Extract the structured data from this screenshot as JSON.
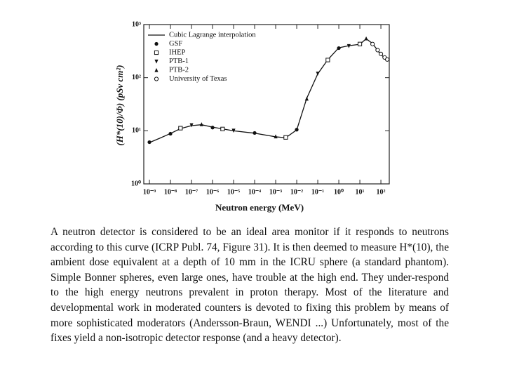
{
  "chart_data": {
    "type": "line",
    "xlabel": "Neutron energy (MeV)",
    "ylabel": "(H*(10)/Φ) (pSv cm²)",
    "xscale": "log",
    "yscale": "log",
    "xlim": [
      5.4e-10,
      250
    ],
    "ylim": [
      1,
      1000
    ],
    "xticks": [
      {
        "value": 1e-09,
        "label": "10⁻⁹"
      },
      {
        "value": 1e-08,
        "label": "10⁻⁸"
      },
      {
        "value": 1e-07,
        "label": "10⁻⁷"
      },
      {
        "value": 1e-06,
        "label": "10⁻⁶"
      },
      {
        "value": 1e-05,
        "label": "10⁻⁵"
      },
      {
        "value": 0.0001,
        "label": "10⁻⁴"
      },
      {
        "value": 0.001,
        "label": "10⁻³"
      },
      {
        "value": 0.01,
        "label": "10⁻²"
      },
      {
        "value": 0.1,
        "label": "10⁻¹"
      },
      {
        "value": 1,
        "label": "10⁰"
      },
      {
        "value": 10,
        "label": "10¹"
      },
      {
        "value": 100,
        "label": "10²"
      }
    ],
    "yticks": [
      {
        "value": 1,
        "label": "10⁰"
      },
      {
        "value": 10,
        "label": "10¹"
      },
      {
        "value": 100,
        "label": "10²"
      },
      {
        "value": 1000,
        "label": "10³"
      }
    ],
    "legend": "upper left",
    "series": [
      {
        "name": "Cubic Lagrange interpolation",
        "color": "#111111",
        "marker": "none",
        "x": [
          1e-09,
          3e-09,
          1e-08,
          3e-08,
          1e-07,
          3e-07,
          1e-06,
          1e-05,
          0.0001,
          0.001,
          0.003,
          0.01,
          0.03,
          0.1,
          0.3,
          1,
          3,
          10,
          20,
          40,
          100,
          200
        ],
        "values": [
          6.0,
          7.2,
          8.9,
          11,
          12.5,
          13,
          11.7,
          10,
          9,
          7.7,
          7.4,
          10.4,
          41,
          118,
          218,
          365,
          400,
          425,
          540,
          440,
          270,
          218
        ]
      },
      {
        "name": "GSF",
        "color": "#111111",
        "marker": "dot",
        "x": [
          1e-09,
          1e-08,
          1e-06,
          0.0001,
          0.01,
          1
        ],
        "values": [
          6.1,
          8.8,
          11.5,
          9.1,
          10.5,
          360
        ]
      },
      {
        "name": "IHEP",
        "color": "#111111",
        "marker": "square",
        "x": [
          3e-08,
          3e-06,
          0.003,
          0.3,
          10
        ],
        "values": [
          11.2,
          10.8,
          7.5,
          215,
          430
        ]
      },
      {
        "name": "PTB-1",
        "color": "#111111",
        "marker": "triangle-down",
        "x": [
          1e-07,
          1e-05,
          0.1,
          3
        ],
        "values": [
          12.8,
          10.1,
          120,
          395
        ]
      },
      {
        "name": "PTB-2",
        "color": "#111111",
        "marker": "triangle",
        "x": [
          3e-07,
          0.001,
          0.03,
          20
        ],
        "values": [
          13.2,
          7.8,
          40,
          545
        ]
      },
      {
        "name": "University of Texas",
        "color": "#111111",
        "marker": "circle",
        "x": [
          40,
          70,
          100,
          150,
          200
        ],
        "values": [
          430,
          330,
          280,
          240,
          220
        ]
      }
    ]
  },
  "caption": "A neutron detector is considered to be an ideal area monitor if it responds to neutrons according to this curve (ICRP Publ. 74, Figure 31). It is then deemed to measure H*(10), the ambient dose equivalent at a depth of 10 mm in the ICRU sphere (a standard phantom). Simple Bonner spheres, even large ones, have trouble at the high end. They under-respond to the high energy neutrons prevalent in proton therapy. Most of the literature and developmental work in moderated counters is devoted to fixing this problem by means of more sophisticated moderators (Andersson-Braun, WENDI ...) Unfortunately, most of the fixes yield a non-isotropic detector response (and a heavy detector)."
}
